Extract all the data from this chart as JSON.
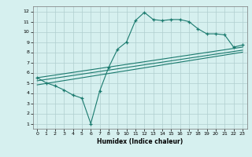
{
  "xlabel": "Humidex (Indice chaleur)",
  "bg_color": "#d6f0ef",
  "grid_color": "#b0cece",
  "line_color": "#1a7a6e",
  "xlim": [
    -0.5,
    23.5
  ],
  "ylim": [
    0.5,
    12.5
  ],
  "xticks": [
    0,
    1,
    2,
    3,
    4,
    5,
    6,
    7,
    8,
    9,
    10,
    11,
    12,
    13,
    14,
    15,
    16,
    17,
    18,
    19,
    20,
    21,
    22,
    23
  ],
  "yticks": [
    1,
    2,
    3,
    4,
    5,
    6,
    7,
    8,
    9,
    10,
    11,
    12
  ],
  "line1_x": [
    0,
    1,
    2,
    3,
    4,
    5,
    6,
    7,
    8,
    9,
    10,
    11,
    12,
    13,
    14,
    15,
    16,
    17,
    18,
    19,
    20,
    21,
    22,
    23
  ],
  "line1_y": [
    5.5,
    5.0,
    4.7,
    4.3,
    3.8,
    3.5,
    1.0,
    4.2,
    6.5,
    8.3,
    9.0,
    11.1,
    11.9,
    11.2,
    11.1,
    11.2,
    11.2,
    11.0,
    10.3,
    9.8,
    9.8,
    9.7,
    8.5,
    8.7
  ],
  "line2_x": [
    0,
    23
  ],
  "line2_y": [
    5.5,
    8.5
  ],
  "line3_x": [
    0,
    23
  ],
  "line3_y": [
    5.2,
    8.2
  ],
  "line4_x": [
    0,
    23
  ],
  "line4_y": [
    4.8,
    8.0
  ]
}
